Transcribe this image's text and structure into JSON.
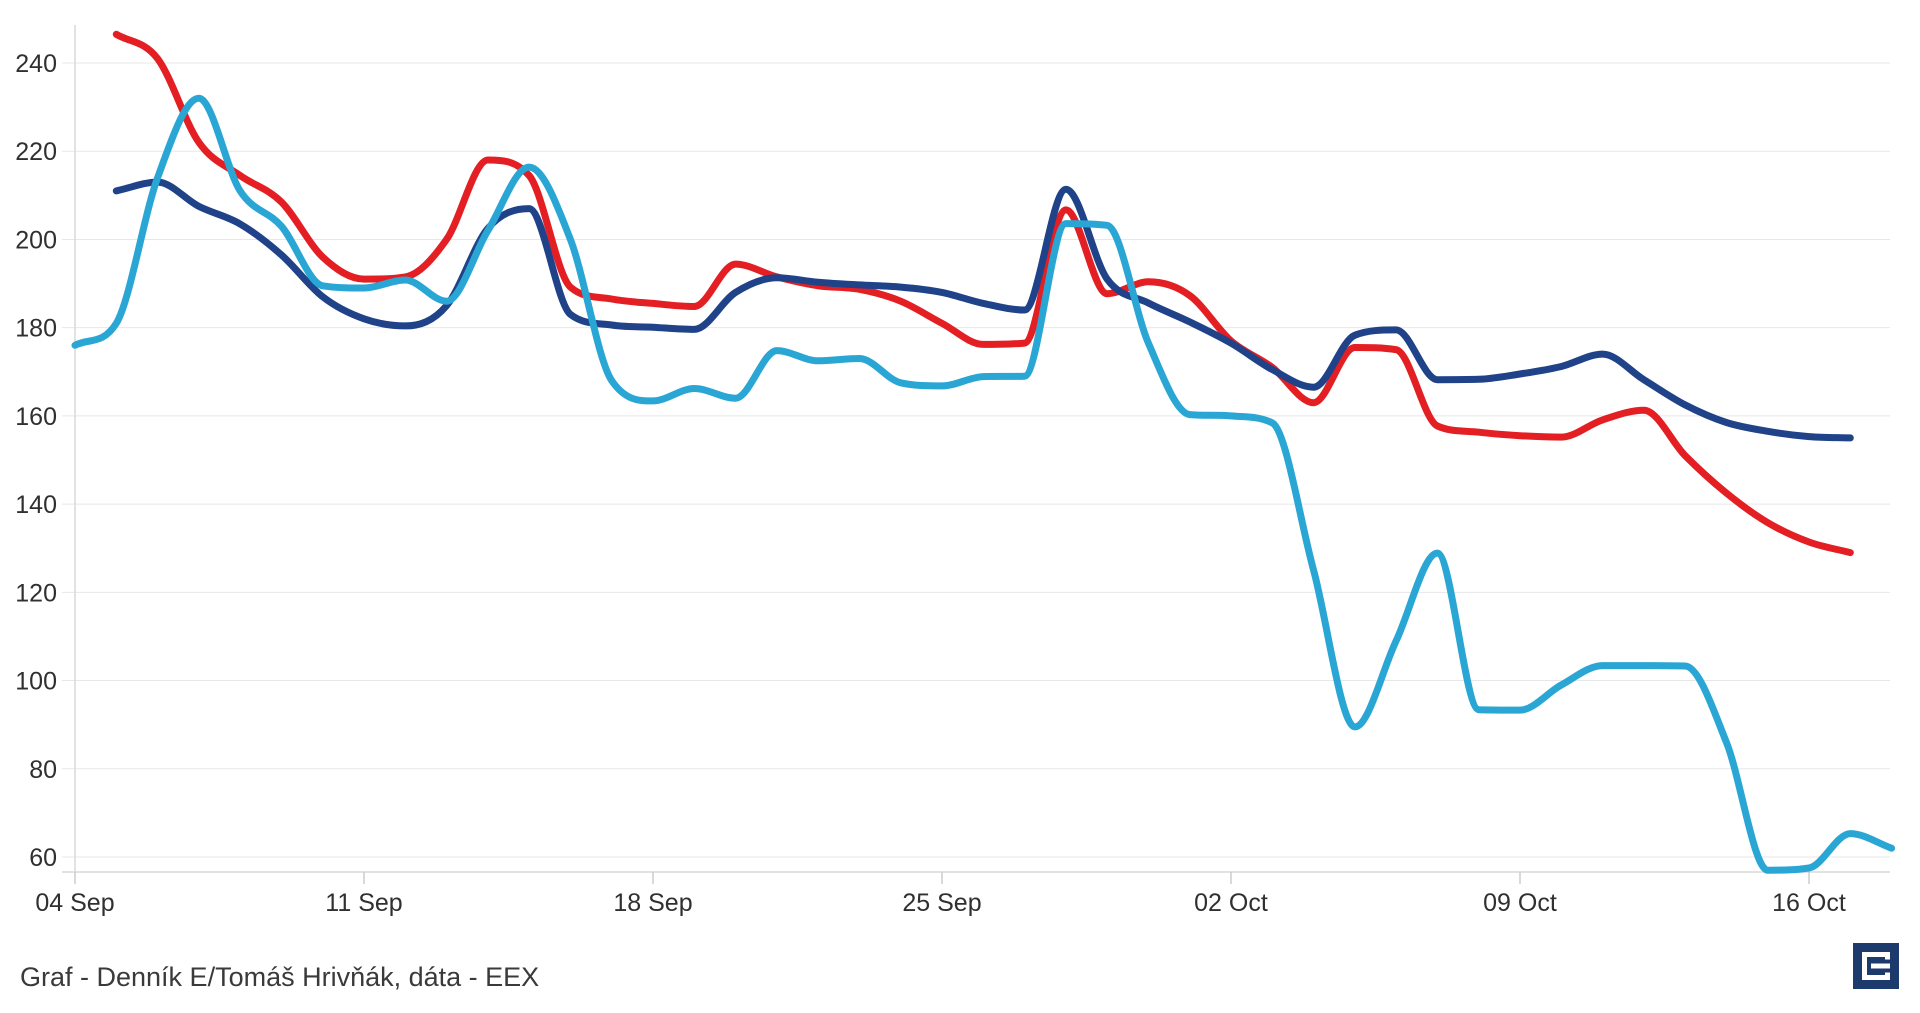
{
  "page": {
    "background": "#ffffff"
  },
  "caption": {
    "text": "Graf - Denník E/Tomáš Hrivňák, dáta - EEX"
  },
  "logo": {
    "name": "dennik-e-logo",
    "bg_color": "#1d3a6d",
    "glyph_color": "#ffffff"
  },
  "axis_style": {
    "label_color": "#303030",
    "grid_color": "#e7e7e7",
    "axis_line_color": "#d9d9d9",
    "tick_color": "#cccccc"
  },
  "chart_data": {
    "type": "line",
    "title": "",
    "xlabel": "",
    "ylabel": "",
    "grid": true,
    "legend": false,
    "x_axis": {
      "unit": "day",
      "tick_labels": [
        "04 Sep",
        "11 Sep",
        "18 Sep",
        "25 Sep",
        "02 Oct",
        "09 Oct",
        "16 Oct"
      ],
      "tick_days": [
        0,
        7,
        14,
        21,
        28,
        35,
        42
      ]
    },
    "y_axis": {
      "ticks": [
        60,
        80,
        100,
        120,
        140,
        160,
        180,
        200,
        220,
        240
      ],
      "min": 60,
      "max": 248
    },
    "series": [
      {
        "name": "red-line",
        "color": "#e41f24",
        "line_width": 7,
        "start_day": 1,
        "values": [
          246.5,
          241,
          222,
          214.5,
          208.5,
          196,
          191,
          191.5,
          200,
          218,
          214.5,
          189.2,
          186.5,
          185.5,
          184.8,
          194.4,
          191.5,
          189.5,
          188.7,
          186,
          181,
          176.2,
          176.5,
          206.7,
          187.7,
          190.4,
          187.3,
          177,
          171,
          163,
          175.5,
          175,
          157.7,
          156.3,
          155.5,
          155.2,
          159.1,
          161.3,
          151,
          142.5,
          135.8,
          131.4,
          129
        ]
      },
      {
        "name": "dark-blue-line",
        "color": "#1f4289",
        "line_width": 7,
        "start_day": 1,
        "values": [
          211,
          213,
          207.5,
          203.5,
          196.5,
          187,
          182,
          180.4,
          185,
          202.5,
          207,
          183,
          180.6,
          180.1,
          179.6,
          188,
          191.3,
          190.3,
          189.7,
          189.2,
          188,
          185.5,
          184,
          211.4,
          191,
          185.6,
          181.3,
          176.5,
          170.5,
          166.5,
          178.3,
          179.5,
          168.2,
          168.3,
          169.5,
          171.2,
          174,
          168.2,
          162.5,
          158.5,
          156.5,
          155.3,
          155
        ]
      },
      {
        "name": "light-blue-line",
        "color": "#2aa6d5",
        "line_width": 7,
        "start_day": 0,
        "values": [
          176,
          181,
          214,
          232,
          211,
          203,
          189.5,
          189,
          190.8,
          186,
          202,
          216.4,
          200,
          168,
          163.4,
          166.2,
          164,
          174.8,
          172.5,
          173,
          167.5,
          166.8,
          168.9,
          169,
          203.6,
          203.2,
          176.5,
          160.3,
          160,
          158.4,
          125,
          89.5,
          109,
          128.9,
          93.4,
          93.3,
          99,
          103.4,
          103.4,
          103.3,
          86,
          57,
          57.5,
          65.3,
          62
        ]
      }
    ]
  }
}
